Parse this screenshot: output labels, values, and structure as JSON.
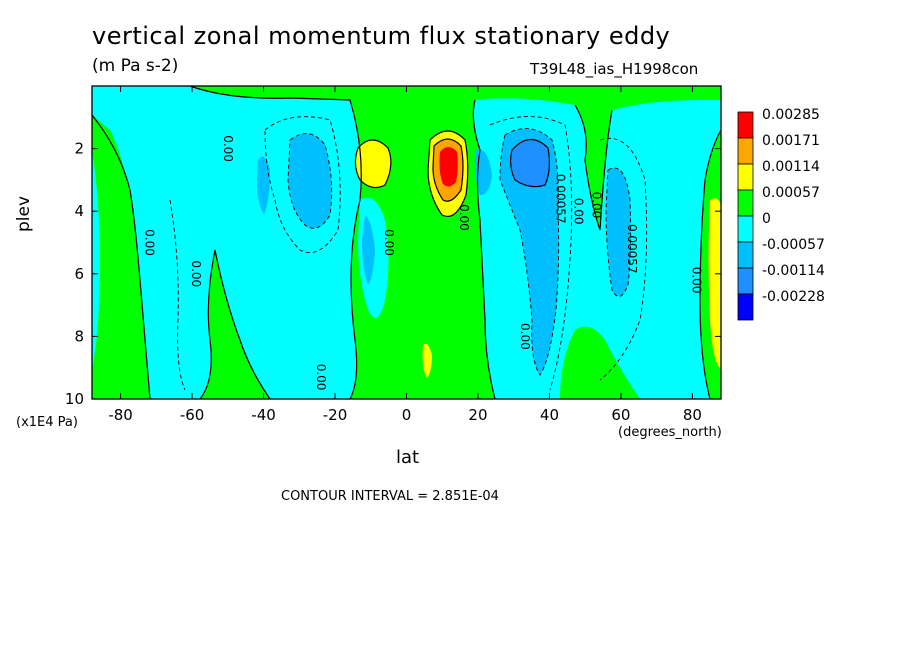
{
  "chart_data": {
    "type": "heatmap",
    "title": "vertical zonal momentum flux stationary eddy",
    "units": "(m Pa s-2)",
    "run_id": "T39L48_ias_H1998con",
    "xlabel": "lat",
    "x_units": "(degrees_north)",
    "ylabel": "plev",
    "y_units": "(x1E4 Pa)",
    "contour_interval": "CONTOUR INTERVAL = 2.851E-04",
    "xlim": [
      -88,
      88
    ],
    "ylim": [
      0,
      10
    ],
    "x_ticks": [
      -80,
      -60,
      -40,
      -20,
      0,
      20,
      40,
      60,
      80
    ],
    "y_ticks": [
      2,
      4,
      6,
      8,
      10
    ],
    "legend": {
      "placement": "right",
      "labels": [
        "0.00285",
        "0.00171",
        "0.00114",
        "0.00057",
        "0",
        "-0.00057",
        "-0.00114",
        "-0.00228"
      ],
      "colors": [
        "#ff0000",
        "#ffa500",
        "#ffff00",
        "#00ff00",
        "#00ffff",
        "#00bfff",
        "#1e90ff",
        "#0000ff"
      ]
    },
    "contour_labels": [
      {
        "text": "0.00",
        "lat": -73,
        "plev": 5.0
      },
      {
        "text": "0.00",
        "lat": -60,
        "plev": 6.0
      },
      {
        "text": "0.00",
        "lat": -51,
        "plev": 2.0
      },
      {
        "text": "0.00",
        "lat": -25,
        "plev": 9.3
      },
      {
        "text": "0.00",
        "lat": -6,
        "plev": 5.0
      },
      {
        "text": "0.00",
        "lat": 15,
        "plev": 4.2
      },
      {
        "text": "0.00",
        "lat": 32,
        "plev": 8.0
      },
      {
        "text": "0.00057",
        "lat": 42,
        "plev": 3.6
      },
      {
        "text": "0.00",
        "lat": 47,
        "plev": 4.0
      },
      {
        "text": "0.00",
        "lat": 52,
        "plev": 3.8
      },
      {
        "text": "0.00057",
        "lat": 62,
        "plev": 5.2
      },
      {
        "text": "0.00",
        "lat": 80,
        "plev": 6.2
      }
    ]
  }
}
